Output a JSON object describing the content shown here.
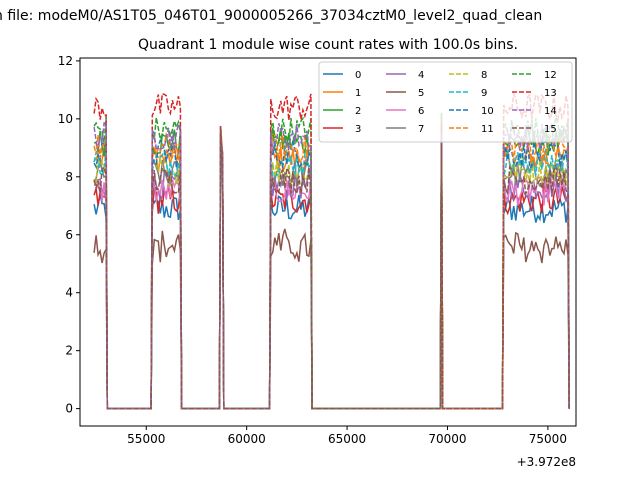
{
  "figure": {
    "suptitle": "n file: modeM0/AS1T05_046T01_9000005266_37034cztM0_level2_quad_clean",
    "title": "Quadrant 1 module wise count rates with 100.0s bins.",
    "x_offset_label": "+3.972e8"
  },
  "chart_data": {
    "type": "line",
    "title": "Quadrant 1 module wise count rates with 100.0s bins.",
    "xlabel": "",
    "ylabel": "",
    "x_offset": 397200000,
    "xlim": [
      51700,
      76400
    ],
    "ylim": [
      -0.6,
      12.1
    ],
    "xticks": [
      55000,
      60000,
      65000,
      70000,
      75000
    ],
    "xtick_labels": [
      "55000",
      "60000",
      "65000",
      "70000",
      "75000"
    ],
    "yticks": [
      0,
      2,
      4,
      6,
      8,
      10,
      12
    ],
    "ytick_labels": [
      "0",
      "2",
      "4",
      "6",
      "8",
      "10",
      "12"
    ],
    "grid": false,
    "legend": {
      "placement": "top-right",
      "columns": 4
    },
    "segments": [
      {
        "x_start": 52400,
        "x_end": 53000,
        "n": 7
      },
      {
        "x_start": 55300,
        "x_end": 56700,
        "n": 15
      },
      {
        "x_start": 58700,
        "x_end": 58800,
        "n": 2
      },
      {
        "x_start": 61200,
        "x_end": 63200,
        "n": 21
      },
      {
        "x_start": 69700,
        "x_end": 69700,
        "n": 1
      },
      {
        "x_start": 72800,
        "x_end": 76000,
        "n": 33
      }
    ],
    "gap_value": 0,
    "spike_values": [
      10.2,
      9.0
    ],
    "series": [
      {
        "name": "0",
        "color": "#1f77b4",
        "dash": "solid",
        "level": 6.9
      },
      {
        "name": "1",
        "color": "#ff7f0e",
        "dash": "solid",
        "level": 8.6
      },
      {
        "name": "2",
        "color": "#2ca02c",
        "dash": "solid",
        "level": 9.2
      },
      {
        "name": "3",
        "color": "#d62728",
        "dash": "solid",
        "level": 7.2
      },
      {
        "name": "4",
        "color": "#9467bd",
        "dash": "solid",
        "level": 7.7
      },
      {
        "name": "5",
        "color": "#8c564b",
        "dash": "solid",
        "level": 5.6
      },
      {
        "name": "6",
        "color": "#e377c2",
        "dash": "solid",
        "level": 7.5
      },
      {
        "name": "7",
        "color": "#7f7f7f",
        "dash": "solid",
        "level": 8.1
      },
      {
        "name": "8",
        "color": "#bcbd22",
        "dash": "dashed",
        "level": 8.2
      },
      {
        "name": "9",
        "color": "#17becf",
        "dash": "dashed",
        "level": 8.5
      },
      {
        "name": "10",
        "color": "#1f77b4",
        "dash": "dashed",
        "level": 8.8
      },
      {
        "name": "11",
        "color": "#ff7f0e",
        "dash": "dashed",
        "level": 9.0
      },
      {
        "name": "12",
        "color": "#2ca02c",
        "dash": "dashed",
        "level": 9.6
      },
      {
        "name": "13",
        "color": "#d62728",
        "dash": "dashed",
        "level": 10.4
      },
      {
        "name": "14",
        "color": "#9467bd",
        "dash": "dashed",
        "level": 9.4
      },
      {
        "name": "15",
        "color": "#8c564b",
        "dash": "dashed",
        "level": 7.9
      }
    ]
  }
}
